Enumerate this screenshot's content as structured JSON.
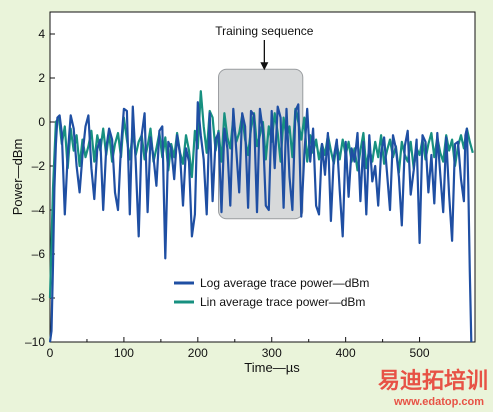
{
  "chart_data": {
    "type": "line",
    "title": "",
    "xlabel": "Time—µs",
    "ylabel": "Power—dBm",
    "xlim": [
      0,
      575
    ],
    "ylim": [
      -10,
      5
    ],
    "x_ticks": [
      0,
      100,
      200,
      300,
      400,
      500
    ],
    "y_ticks": [
      4,
      2,
      0,
      -2,
      -4,
      -6,
      -8,
      -10
    ],
    "grid": false,
    "legend_position": "bottom-center",
    "annotation": {
      "text": "Training sequence",
      "x_range": [
        228,
        342
      ],
      "y_range": [
        -4.4,
        2.4
      ],
      "arrow_x": 290
    },
    "series": [
      {
        "name": "Log average trace power—dBm",
        "color": "#1f4fa3",
        "x": [
          0,
          2,
          4,
          6,
          8,
          10,
          13,
          16,
          20,
          24,
          28,
          32,
          36,
          40,
          44,
          48,
          52,
          56,
          60,
          64,
          68,
          72,
          76,
          80,
          84,
          88,
          92,
          96,
          100,
          104,
          108,
          112,
          116,
          120,
          124,
          128,
          132,
          136,
          140,
          144,
          148,
          152,
          156,
          160,
          164,
          168,
          172,
          176,
          180,
          184,
          188,
          192,
          196,
          200,
          204,
          208,
          212,
          216,
          220,
          224,
          228,
          232,
          236,
          240,
          244,
          248,
          252,
          256,
          260,
          264,
          268,
          272,
          276,
          280,
          284,
          288,
          292,
          296,
          300,
          304,
          308,
          312,
          316,
          320,
          324,
          328,
          332,
          336,
          340,
          344,
          348,
          352,
          356,
          360,
          364,
          368,
          372,
          376,
          380,
          384,
          388,
          392,
          396,
          400,
          404,
          408,
          412,
          416,
          420,
          424,
          428,
          432,
          436,
          440,
          444,
          448,
          452,
          456,
          460,
          464,
          468,
          472,
          476,
          480,
          484,
          488,
          492,
          496,
          500,
          504,
          508,
          512,
          516,
          520,
          524,
          528,
          532,
          536,
          540,
          544,
          548,
          552,
          556,
          560,
          562,
          564,
          566,
          568,
          570
        ],
        "values": [
          -10,
          -9.5,
          -6.5,
          -3,
          -1,
          0.2,
          0.3,
          -0.5,
          -4.2,
          -1.5,
          0.3,
          -0.3,
          -2,
          -3.2,
          -1.5,
          -0.2,
          0.3,
          -2.1,
          -3.5,
          -1.2,
          -0.8,
          -4,
          -1.2,
          -0.3,
          -0.8,
          -3.2,
          -4,
          -1.1,
          0.6,
          0.5,
          -4.2,
          0.7,
          -1.8,
          -5.2,
          -0.6,
          0.4,
          -4.1,
          -0.7,
          -1.6,
          -2.9,
          -0.4,
          -0.2,
          -6.2,
          -0.9,
          -1.2,
          -2.6,
          -0.6,
          -1.5,
          -3.8,
          -1.2,
          -1.8,
          -5.2,
          -4.2,
          0.9,
          -0.6,
          -1.7,
          -4.2,
          0.4,
          -3.6,
          -0.8,
          -0.5,
          -4.1,
          -0.3,
          -1.2,
          -3.8,
          0.6,
          -1.3,
          -3.2,
          0.4,
          -0.2,
          -3.9,
          0.5,
          0.3,
          -4.1,
          0.6,
          -0.4,
          -3.8,
          -4,
          0.5,
          -2.1,
          0.7,
          0.2,
          -3.9,
          0.6,
          -2.5,
          -4,
          0.5,
          0.8,
          -4.3,
          -1.5,
          0.6,
          -1.8,
          -0.3,
          -3.8,
          -4.2,
          -1,
          -2.4,
          -0.5,
          -4.5,
          -1.6,
          -0.8,
          -3.1,
          -5.2,
          -0.9,
          -3.4,
          -1.2,
          -1.8,
          -0.5,
          -3.6,
          -0.9,
          -4.2,
          -0.6,
          -2.7,
          -2,
          -3.8,
          -1.4,
          -0.7,
          -2.3,
          -4,
          -0.6,
          -1.2,
          -2.5,
          -4.7,
          -1.1,
          -0.4,
          -3.3,
          -2.2,
          -0.8,
          -5.5,
          -0.6,
          -0.9,
          -3.2,
          -1.5,
          -3.7,
          -0.5,
          -2.4,
          -4.1,
          -0.7,
          -3.3,
          -5.4,
          -1,
          -0.9,
          -2.6,
          -3.6,
          -0.6,
          -0.3,
          -2.9,
          -6.8,
          -10
        ]
      },
      {
        "name": "Lin average trace power—dBm",
        "color": "#179080",
        "x": [
          0,
          4,
          8,
          12,
          16,
          20,
          24,
          28,
          32,
          36,
          40,
          44,
          48,
          52,
          56,
          60,
          64,
          68,
          72,
          76,
          80,
          84,
          88,
          92,
          96,
          100,
          104,
          108,
          112,
          116,
          120,
          124,
          128,
          132,
          136,
          140,
          144,
          148,
          152,
          156,
          160,
          164,
          168,
          172,
          176,
          180,
          184,
          188,
          192,
          196,
          200,
          204,
          208,
          212,
          216,
          220,
          224,
          228,
          232,
          236,
          240,
          244,
          248,
          252,
          256,
          260,
          264,
          268,
          272,
          276,
          280,
          284,
          288,
          292,
          296,
          300,
          304,
          308,
          312,
          316,
          320,
          324,
          328,
          332,
          336,
          340,
          344,
          348,
          352,
          356,
          360,
          364,
          368,
          372,
          376,
          380,
          384,
          388,
          392,
          396,
          400,
          404,
          408,
          412,
          416,
          420,
          424,
          428,
          432,
          436,
          440,
          444,
          448,
          452,
          456,
          460,
          464,
          468,
          472,
          476,
          480,
          484,
          488,
          492,
          496,
          500,
          504,
          508,
          512,
          516,
          520,
          524,
          528,
          532,
          536,
          540,
          544,
          548,
          552,
          556,
          560,
          564,
          568,
          572
        ],
        "values": [
          -8,
          -3,
          0,
          0.2,
          -1,
          -0.2,
          -2.1,
          -0.3,
          -1.3,
          -0.6,
          -2,
          -0.8,
          -1.6,
          -1.1,
          -0.4,
          -1.8,
          -0.6,
          -1.3,
          -0.3,
          -1.5,
          -0.5,
          -1.8,
          -1,
          -0.5,
          -1.6,
          0.2,
          -0.8,
          -1.7,
          -0.4,
          -1.5,
          -0.9,
          -0.6,
          -1.7,
          -1.1,
          -0.3,
          -1.8,
          -1.2,
          -0.5,
          -1.6,
          -0.7,
          -2.2,
          -1,
          -1.6,
          -0.5,
          -1.4,
          -1.9,
          -0.6,
          -1.3,
          -2.5,
          -0.4,
          -1.2,
          1.4,
          -0.2,
          -1.4,
          0.5,
          0.2,
          -1.3,
          -0.4,
          -1.8,
          0.4,
          -0.7,
          -1.2,
          0.2,
          -0.9,
          -0.5,
          0.3,
          -0.8,
          -1.5,
          -0.3,
          0.4,
          -1.1,
          -0.6,
          0,
          -1.7,
          -0.2,
          -0.9,
          0.4,
          -0.5,
          -1.8,
          0.2,
          -0.7,
          -0.2,
          -1.6,
          0.6,
          0,
          -0.8,
          0.2,
          -1.8,
          -0.6,
          -1.4,
          -0.8,
          -1.7,
          -1,
          -1.5,
          -0.6,
          -1.3,
          -1.9,
          -1,
          -1.7,
          -0.8,
          -1.5,
          -0.9,
          -1.8,
          -1.2,
          -2.2,
          -1.3,
          -0.5,
          -2.1,
          -1.2,
          -1.8,
          -0.9,
          -1.6,
          -0.6,
          -1.9,
          -1.3,
          -0.8,
          -1.6,
          -1.1,
          -2.3,
          -0.9,
          -1.5,
          -1.8,
          -0.9,
          -2.1,
          -1.2,
          -1.5,
          -0.8,
          -1.7,
          -1,
          -0.5,
          -1.6,
          -0.7,
          -1.4,
          -1.8,
          -0.6,
          -1.3,
          -0.8,
          -2,
          -1.1,
          -0.6,
          -1.2,
          -0.3,
          -0.9,
          -1.4
        ]
      }
    ]
  },
  "watermark": {
    "text_cn": "易迪拓培训",
    "url": "www.edatop.com",
    "color": "#e7362c"
  }
}
